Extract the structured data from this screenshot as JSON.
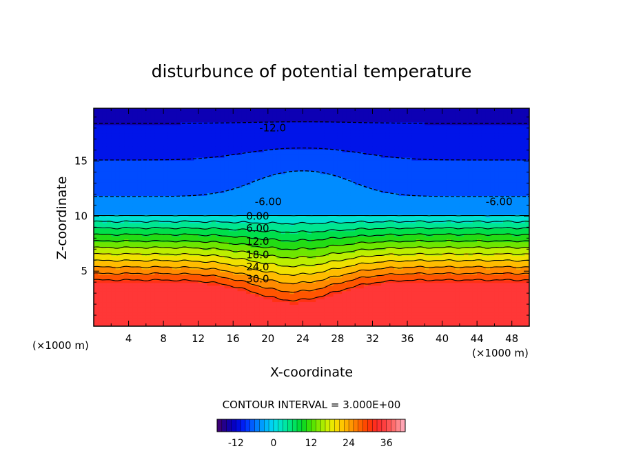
{
  "chart_data": {
    "type": "heatmap",
    "title": "disturbunce of potential temperature",
    "xlabel": "X-coordinate",
    "ylabel": "Z-coordinate",
    "x_unit": "(×1000 m)",
    "y_unit": "(×1000 m)",
    "xlim": [
      0,
      50
    ],
    "ylim": [
      0,
      19.8
    ],
    "x_ticks": [
      "4",
      "8",
      "12",
      "16",
      "20",
      "24",
      "28",
      "32",
      "36",
      "40",
      "44",
      "48"
    ],
    "y_ticks": [
      "5",
      "10",
      "15"
    ],
    "contour_interval_label": "CONTOUR INTERVAL = 3.000E+00",
    "colorbar": {
      "min": -18,
      "max": 42,
      "ticks": [
        "-12",
        "0",
        "12",
        "24",
        "36"
      ]
    },
    "contour_labels": [
      {
        "text": "-12.0",
        "x": 19,
        "z": 18.0
      },
      {
        "text": "-6.00",
        "x": 18.5,
        "z": 11.3
      },
      {
        "text": "-6.00",
        "x": 45,
        "z": 11.3
      },
      {
        "text": "0.00",
        "x": 17.5,
        "z": 10.0
      },
      {
        "text": "6.00",
        "x": 17.5,
        "z": 8.9
      },
      {
        "text": "12.0",
        "x": 17.5,
        "z": 7.7
      },
      {
        "text": "18.0",
        "x": 17.5,
        "z": 6.5
      },
      {
        "text": "24.0",
        "x": 17.5,
        "z": 5.4
      },
      {
        "text": "30.0",
        "x": 17.5,
        "z": 4.3
      }
    ],
    "contours_solid": [
      0,
      3,
      6,
      9,
      12,
      15,
      18,
      21,
      24,
      27,
      30
    ],
    "contours_dashed": [
      -6,
      -9,
      -12
    ],
    "field_structure": {
      "warm_layer_top_z": 4.0,
      "bump_center_x": 23,
      "bump_min_z": 2.1,
      "upper_ridge_peak_z": 14.1
    }
  }
}
